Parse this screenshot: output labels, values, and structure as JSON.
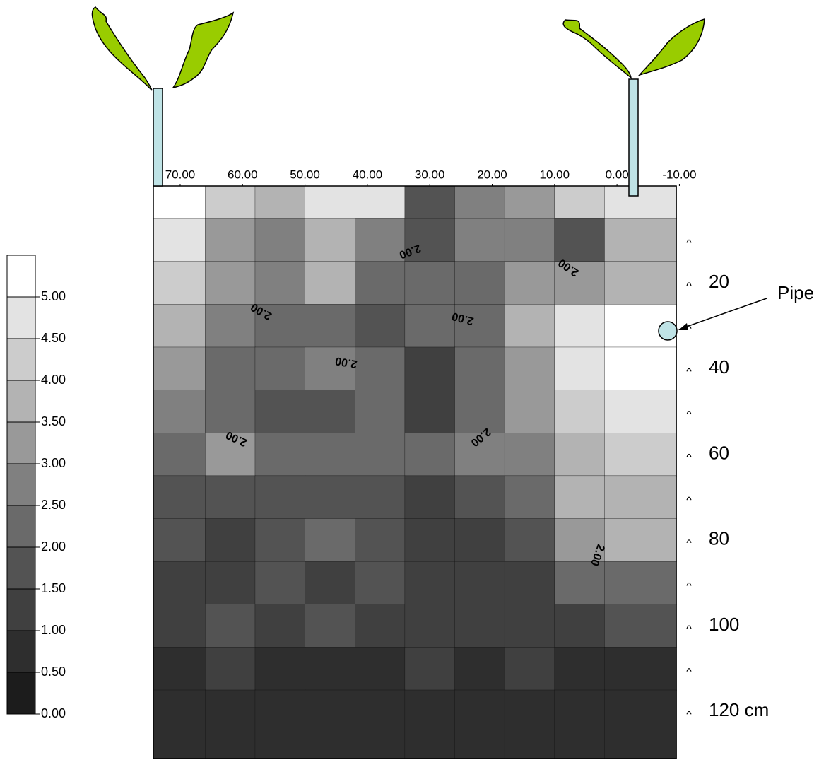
{
  "chart_data": {
    "type": "contour",
    "x": [
      70,
      62,
      54,
      46,
      38,
      30,
      22,
      14,
      6,
      -2
    ],
    "y": [
      0,
      10,
      20,
      30,
      40,
      50,
      60,
      70,
      80,
      90,
      100,
      110,
      120
    ],
    "z": [
      [
        5,
        4,
        3.5,
        4.5,
        4.5,
        1.5,
        2.5,
        3,
        4,
        4.5
      ],
      [
        4.5,
        3,
        2.5,
        3.5,
        2.5,
        1.5,
        2.5,
        2.5,
        1.5,
        3.5
      ],
      [
        4,
        3,
        2.5,
        3.5,
        2,
        2,
        2,
        3,
        3,
        3.5
      ],
      [
        3.5,
        2.5,
        2,
        2,
        1.5,
        2,
        2,
        3.5,
        4.5,
        5
      ],
      [
        3,
        2,
        2,
        2.5,
        2,
        1,
        2,
        3,
        4.5,
        5
      ],
      [
        2.5,
        2,
        1.5,
        1.5,
        2,
        1,
        2,
        3,
        4,
        4.5
      ],
      [
        2,
        3,
        2,
        2,
        2,
        2,
        2.5,
        2.5,
        3.5,
        4
      ],
      [
        1.5,
        1.5,
        1.5,
        1.5,
        1.5,
        1,
        1.5,
        2,
        3.5,
        3.5
      ],
      [
        1.5,
        1,
        1.5,
        2,
        1.5,
        1,
        1,
        1.5,
        3,
        3.5
      ],
      [
        1,
        1,
        1.5,
        1,
        1.5,
        1,
        1,
        1,
        2,
        2
      ],
      [
        1,
        1.5,
        1,
        1.5,
        1,
        1,
        1,
        1,
        1,
        1.5
      ],
      [
        0.5,
        1,
        0.5,
        0.5,
        0.5,
        1,
        0.5,
        1,
        0.5,
        0.5
      ],
      [
        0.5,
        0.5,
        0.5,
        0.5,
        0.5,
        0.5,
        0.5,
        0.5,
        0.5,
        0.5
      ]
    ],
    "xlim": [
      74.3,
      -9.5
    ],
    "ylim": [
      -2.6,
      131
    ],
    "xticks": [
      {
        "value": 70,
        "label": "70.00"
      },
      {
        "value": 60,
        "label": "60.00"
      },
      {
        "value": 50,
        "label": "50.00"
      },
      {
        "value": 40,
        "label": "40.00"
      },
      {
        "value": 30,
        "label": "30.00"
      },
      {
        "value": 20,
        "label": "20.00"
      },
      {
        "value": 10,
        "label": "10.00"
      },
      {
        "value": 0,
        "label": "0.00"
      },
      {
        "value": -10,
        "label": "-10.00"
      }
    ],
    "yticks": [
      20,
      40,
      60,
      80,
      100,
      {
        "value": 120,
        "label": "120 cm"
      }
    ],
    "yminorticks": [
      10,
      30,
      50,
      70,
      90,
      110
    ],
    "levels": [
      {
        "value": 0,
        "label": "0.00"
      },
      {
        "value": 0.5,
        "label": "0.50"
      },
      {
        "value": 1,
        "label": "1.00"
      },
      {
        "value": 1.5,
        "label": "1.50"
      },
      {
        "value": 2,
        "label": "2.00"
      },
      {
        "value": 2.5,
        "label": "2.50"
      },
      {
        "value": 3,
        "label": "3.00"
      },
      {
        "value": 3.5,
        "label": "3.50"
      },
      {
        "value": 4,
        "label": "4.00"
      },
      {
        "value": 4.5,
        "label": "4.50"
      },
      {
        "value": 5,
        "label": "5.00"
      }
    ],
    "colors": [
      "#1c1c1c",
      "#2e2e2e",
      "#404040",
      "#535353",
      "#6a6a6a",
      "#808080",
      "#999999",
      "#b3b3b3",
      "#cccccc",
      "#e3e3e3",
      "#ffffff"
    ],
    "contour_labels": [
      "2.00",
      "2.00",
      "2.00",
      "2.00",
      "2.00",
      "2.00",
      "2.00",
      "2.00",
      "2.00"
    ],
    "annotation": "Pipe"
  }
}
